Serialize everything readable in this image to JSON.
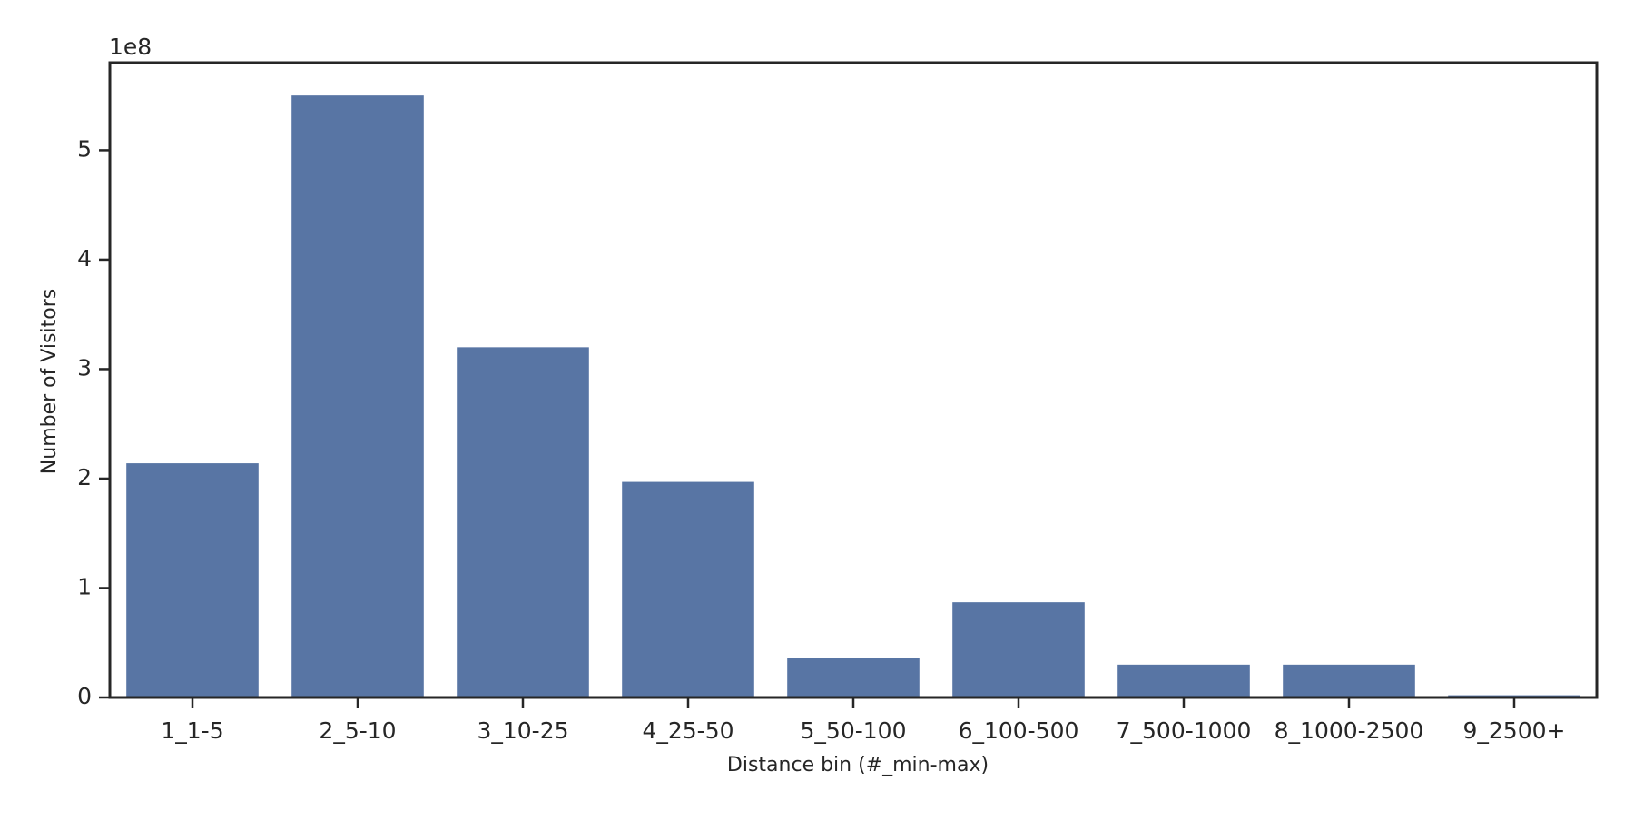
{
  "chart_data": {
    "type": "bar",
    "x_label": "Distance bin (#_min-max)",
    "y_label": "Number of Visitors",
    "y_offset_label": "1e8",
    "categories": [
      "1_1-5",
      "2_5-10",
      "3_10-25",
      "4_25-50",
      "5_50-100",
      "6_100-500",
      "7_500-1000",
      "8_1000-2500",
      "9_2500+"
    ],
    "values": [
      2.14,
      5.5,
      3.2,
      1.97,
      0.36,
      0.87,
      0.3,
      0.3,
      0.02
    ],
    "color": "#5875a4",
    "ylim": [
      0,
      5.8
    ],
    "yticks": [
      0,
      1,
      2,
      3,
      4,
      5
    ],
    "grid": false
  }
}
